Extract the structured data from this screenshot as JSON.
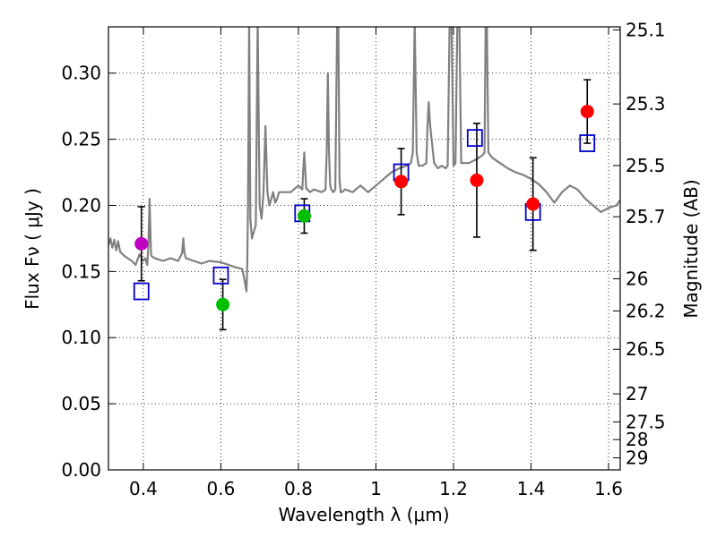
{
  "chart_data": {
    "type": "scatter",
    "title": "",
    "xlabel": "Wavelength  λ (μm)",
    "ylabel_left": "Flux  Fν  ( μJy )",
    "ylabel_right": "Magnitude (AB)",
    "xlim": [
      0.31,
      1.63
    ],
    "ylim": [
      0.0,
      0.335
    ],
    "grid": true,
    "x_ticks": [
      0.4,
      0.6,
      0.8,
      1.0,
      1.2,
      1.4,
      1.6
    ],
    "x_tick_labels": [
      "0.4",
      "0.6",
      "0.8",
      "1",
      "1.2",
      "1.4",
      "1.6"
    ],
    "y_ticks": [
      0.0,
      0.05,
      0.1,
      0.15,
      0.2,
      0.25,
      0.3
    ],
    "y_tick_labels": [
      "0.00",
      "0.05",
      "0.10",
      "0.15",
      "0.20",
      "0.25",
      "0.30"
    ],
    "right_ticks": [
      {
        "label": "25.1",
        "flux": 0.3327
      },
      {
        "label": "25.3",
        "flux": 0.2767
      },
      {
        "label": "25.5",
        "flux": 0.2301
      },
      {
        "label": "25.7",
        "flux": 0.1914
      },
      {
        "label": "26",
        "flux": 0.1445
      },
      {
        "label": "26.2",
        "flux": 0.1202
      },
      {
        "label": "26.5",
        "flux": 0.0912
      },
      {
        "label": "27",
        "flux": 0.0575
      },
      {
        "label": "27.5",
        "flux": 0.0363
      },
      {
        "label": "28",
        "flux": 0.0229
      },
      {
        "label": "29",
        "flux": 0.0091
      }
    ],
    "observed": [
      {
        "x": 0.395,
        "y": 0.171,
        "err": 0.028,
        "color": "#bf00bf"
      },
      {
        "x": 0.605,
        "y": 0.125,
        "err": 0.019,
        "color": "#00bf00"
      },
      {
        "x": 0.815,
        "y": 0.192,
        "err": 0.013,
        "color": "#00bf00"
      },
      {
        "x": 1.065,
        "y": 0.218,
        "err": 0.025,
        "color": "#ff0000"
      },
      {
        "x": 1.26,
        "y": 0.219,
        "err": 0.043,
        "color": "#ff0000"
      },
      {
        "x": 1.405,
        "y": 0.201,
        "err": 0.035,
        "color": "#ff0000"
      },
      {
        "x": 1.545,
        "y": 0.271,
        "err": 0.024,
        "color": "#ff0000"
      }
    ],
    "model_points": [
      {
        "x": 0.395,
        "y": 0.135
      },
      {
        "x": 0.6,
        "y": 0.147
      },
      {
        "x": 0.81,
        "y": 0.194
      },
      {
        "x": 1.065,
        "y": 0.225
      },
      {
        "x": 1.255,
        "y": 0.251
      },
      {
        "x": 1.405,
        "y": 0.195
      },
      {
        "x": 1.545,
        "y": 0.247
      }
    ],
    "model_spectrum": {
      "color": "#808080",
      "x": [
        0.31,
        0.315,
        0.32,
        0.325,
        0.33,
        0.335,
        0.34,
        0.35,
        0.36,
        0.37,
        0.38,
        0.39,
        0.4,
        0.405,
        0.41,
        0.413,
        0.416,
        0.419,
        0.42,
        0.43,
        0.45,
        0.47,
        0.49,
        0.5,
        0.503,
        0.506,
        0.51,
        0.53,
        0.55,
        0.57,
        0.6,
        0.62,
        0.64,
        0.655,
        0.66,
        0.663,
        0.666,
        0.668,
        0.67,
        0.673,
        0.676,
        0.68,
        0.685,
        0.69,
        0.695,
        0.7,
        0.705,
        0.71,
        0.715,
        0.72,
        0.725,
        0.73,
        0.735,
        0.74,
        0.745,
        0.75,
        0.76,
        0.78,
        0.8,
        0.81,
        0.812,
        0.815,
        0.818,
        0.82,
        0.83,
        0.84,
        0.86,
        0.87,
        0.873,
        0.876,
        0.879,
        0.882,
        0.885,
        0.89,
        0.895,
        0.9,
        0.903,
        0.906,
        0.909,
        0.912,
        0.92,
        0.94,
        0.96,
        0.98,
        1.0,
        1.02,
        1.04,
        1.06,
        1.08,
        1.09,
        1.095,
        1.1,
        1.105,
        1.11,
        1.12,
        1.13,
        1.133,
        1.136,
        1.14,
        1.15,
        1.16,
        1.17,
        1.18,
        1.185,
        1.19,
        1.195,
        1.2,
        1.205,
        1.21,
        1.215,
        1.22,
        1.24,
        1.26,
        1.275,
        1.28,
        1.283,
        1.286,
        1.29,
        1.3,
        1.32,
        1.34,
        1.36,
        1.38,
        1.4,
        1.42,
        1.44,
        1.46,
        1.48,
        1.5,
        1.52,
        1.54,
        1.56,
        1.58,
        1.6,
        1.62,
        1.63
      ],
      "y": [
        0.17,
        0.175,
        0.168,
        0.174,
        0.166,
        0.173,
        0.165,
        0.162,
        0.16,
        0.158,
        0.155,
        0.163,
        0.158,
        0.16,
        0.155,
        0.17,
        0.205,
        0.17,
        0.162,
        0.16,
        0.158,
        0.16,
        0.158,
        0.164,
        0.175,
        0.164,
        0.16,
        0.158,
        0.156,
        0.158,
        0.157,
        0.155,
        0.153,
        0.152,
        0.145,
        0.14,
        0.135,
        0.155,
        0.2,
        0.34,
        0.19,
        0.175,
        0.18,
        0.185,
        0.34,
        0.2,
        0.19,
        0.21,
        0.26,
        0.21,
        0.2,
        0.205,
        0.21,
        0.202,
        0.205,
        0.21,
        0.21,
        0.21,
        0.215,
        0.212,
        0.225,
        0.24,
        0.225,
        0.213,
        0.21,
        0.212,
        0.21,
        0.212,
        0.24,
        0.3,
        0.24,
        0.215,
        0.212,
        0.21,
        0.212,
        0.34,
        0.34,
        0.22,
        0.21,
        0.21,
        0.212,
        0.21,
        0.215,
        0.21,
        0.215,
        0.22,
        0.225,
        0.228,
        0.23,
        0.232,
        0.24,
        0.34,
        0.24,
        0.23,
        0.23,
        0.232,
        0.26,
        0.278,
        0.26,
        0.232,
        0.228,
        0.23,
        0.228,
        0.23,
        0.34,
        0.34,
        0.23,
        0.232,
        0.34,
        0.34,
        0.232,
        0.232,
        0.235,
        0.238,
        0.24,
        0.34,
        0.34,
        0.24,
        0.236,
        0.232,
        0.228,
        0.225,
        0.223,
        0.22,
        0.216,
        0.21,
        0.202,
        0.21,
        0.215,
        0.212,
        0.205,
        0.2,
        0.195,
        0.198,
        0.2,
        0.204
      ]
    }
  }
}
